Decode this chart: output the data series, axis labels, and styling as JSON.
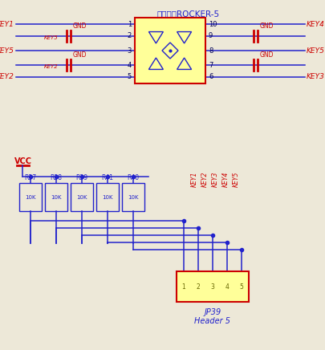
{
  "bg_color": "#ede8d8",
  "blue": "#2222cc",
  "red": "#cc0000",
  "dark_blue": "#000055",
  "title": "五向摇杆ROCKER-5",
  "title_color": "#2222cc",
  "title_fontsize": 7.5,
  "jp39_label": "JP39",
  "header5_label": "Header 5",
  "resistor_labels": [
    "R37",
    "R38",
    "R39",
    "R41",
    "R40"
  ],
  "resistor_values": [
    "10K",
    "10K",
    "10K",
    "10K",
    "10K"
  ],
  "vcc_label": "VCC",
  "pin_numbers_left": [
    1,
    2,
    3,
    4,
    5
  ],
  "pin_numbers_right": [
    10,
    9,
    8,
    7,
    6
  ],
  "connector_keys": [
    "KEY1",
    "KEY2",
    "KEY3",
    "KEY4",
    "KEY5"
  ]
}
